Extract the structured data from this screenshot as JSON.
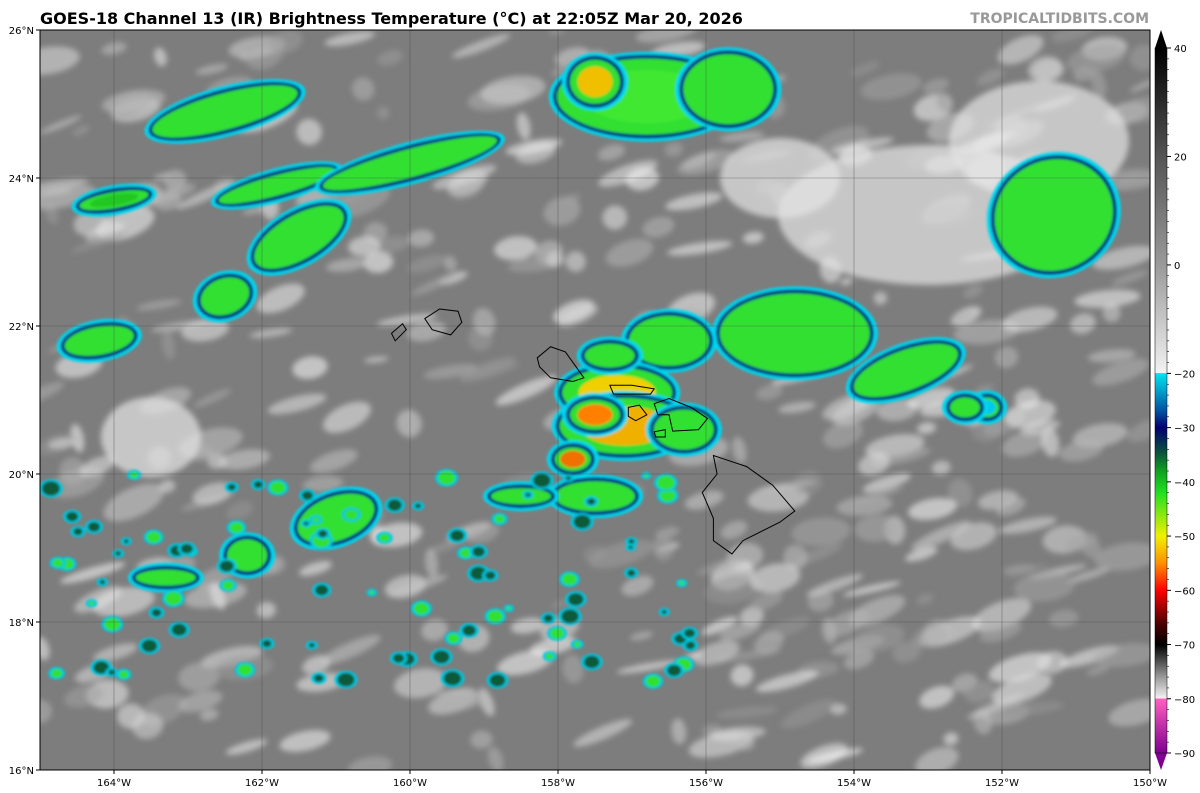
{
  "title": "GOES-18 Channel 13 (IR) Brightness Temperature (°C) at 22:05Z Mar 20, 2026",
  "credit": "TROPICALTIDBITS.COM",
  "map": {
    "lon_range": [
      -165,
      -150
    ],
    "lat_range": [
      16,
      26
    ],
    "lon_ticks": [
      "164°W",
      "162°W",
      "160°W",
      "158°W",
      "156°W",
      "154°W",
      "152°W",
      "150°W"
    ],
    "lon_tick_values": [
      -164,
      -162,
      -160,
      -158,
      -156,
      -154,
      -152,
      -150
    ],
    "lat_ticks": [
      "16°N",
      "18°N",
      "20°N",
      "22°N",
      "24°N",
      "26°N"
    ],
    "lat_tick_values": [
      16,
      18,
      20,
      22,
      24,
      26
    ],
    "gridlines": true,
    "background_color": "#7d7d7d"
  },
  "colorbar": {
    "range": [
      -90,
      40
    ],
    "tick_labels": [
      "40",
      "20",
      "0",
      "−20",
      "−30",
      "−40",
      "−50",
      "−60",
      "−70",
      "−80",
      "−90"
    ],
    "tick_values": [
      40,
      20,
      0,
      -20,
      -30,
      -40,
      -50,
      -60,
      -70,
      -80,
      -90
    ],
    "extend": "both",
    "colors": {
      "warm_top": "#000000",
      "mid_gray": "#9a9a9a",
      "near_white": "#f2f2f2",
      "cyan": "#00e5f0",
      "blue": "#0050a0",
      "navy": "#000070",
      "dark_green": "#0a5a3a",
      "green": "#20e020",
      "yellow": "#f0f000",
      "orange": "#ff9000",
      "red": "#ff0000",
      "dark_red": "#500000",
      "pink": "#ff60c0",
      "purple": "#800090"
    }
  }
}
